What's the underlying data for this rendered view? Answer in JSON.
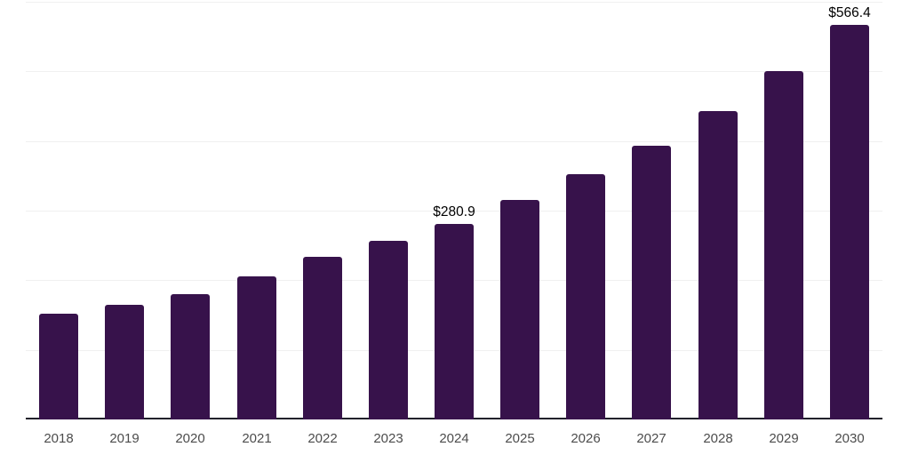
{
  "chart_data": {
    "type": "bar",
    "title": "",
    "xlabel": "",
    "ylabel": "",
    "categories": [
      "2018",
      "2019",
      "2020",
      "2021",
      "2022",
      "2023",
      "2024",
      "2025",
      "2026",
      "2027",
      "2028",
      "2029",
      "2030"
    ],
    "values": [
      152,
      165,
      180,
      205,
      233,
      256,
      280.9,
      315,
      352,
      393,
      443,
      500,
      566.4
    ],
    "data_labels": [
      null,
      null,
      null,
      null,
      null,
      null,
      "$280.9",
      null,
      null,
      null,
      null,
      null,
      "$566.4"
    ],
    "value_prefix": "$",
    "ylim": [
      0,
      600
    ],
    "gridline_step": 100,
    "grid": true,
    "legend_position": "none",
    "y_tick_labels_visible": false,
    "colors": {
      "bar": "#37124B",
      "axis_line": "#21212B",
      "gridline": "#F0F0F0",
      "tick_label": "#4C4C4C",
      "data_label": "#000000",
      "background": "#FFFFFF"
    }
  }
}
